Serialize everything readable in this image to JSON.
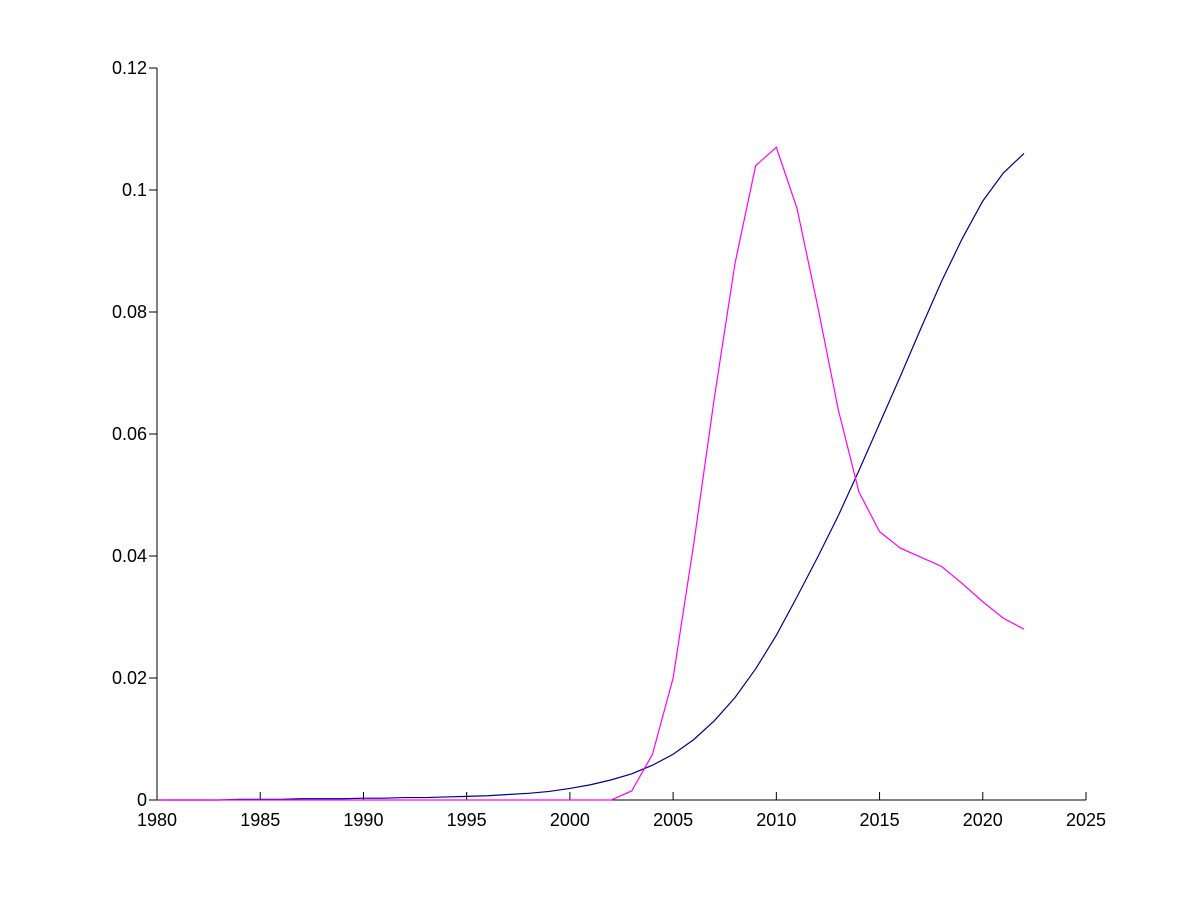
{
  "chart_data": {
    "type": "line",
    "x": [
      1980,
      1981,
      1982,
      1983,
      1984,
      1985,
      1986,
      1987,
      1988,
      1989,
      1990,
      1991,
      1992,
      1993,
      1994,
      1995,
      1996,
      1997,
      1998,
      1999,
      2000,
      2001,
      2002,
      2003,
      2004,
      2005,
      2006,
      2007,
      2008,
      2009,
      2010,
      2011,
      2012,
      2013,
      2014,
      2015,
      2016,
      2017,
      2018,
      2019,
      2020,
      2021,
      2022
    ],
    "series": [
      {
        "color": "#00008b",
        "values": [
          0,
          0,
          0,
          0,
          0.0001,
          0.0001,
          0.0001,
          0.0002,
          0.0002,
          0.0002,
          0.0003,
          0.0003,
          0.0004,
          0.0004,
          0.0005,
          0.0006,
          0.0007,
          0.0009,
          0.0011,
          0.0014,
          0.0019,
          0.0025,
          0.0033,
          0.0043,
          0.0057,
          0.0075,
          0.0099,
          0.013,
          0.0168,
          0.0215,
          0.027,
          0.0333,
          0.0398,
          0.0466,
          0.054,
          0.0617,
          0.0694,
          0.0773,
          0.085,
          0.092,
          0.0982,
          0.1028,
          0.106
        ]
      },
      {
        "color": "#ff00ff",
        "values": [
          0,
          0,
          0,
          0,
          0,
          0,
          0,
          0,
          0,
          0,
          0,
          0,
          0,
          0,
          0,
          0,
          0,
          0,
          0,
          0,
          0,
          0,
          0,
          0.0015,
          0.0075,
          0.02,
          0.042,
          0.066,
          0.088,
          0.104,
          0.107,
          0.097,
          0.081,
          0.064,
          0.0505,
          0.044,
          0.0413,
          0.0398,
          0.0383,
          0.0355,
          0.0325,
          0.0298,
          0.028
        ]
      }
    ],
    "xlim": [
      1980,
      2025
    ],
    "xticks": [
      1980,
      1985,
      1990,
      1995,
      2000,
      2005,
      2010,
      2015,
      2020,
      2025
    ],
    "ylim": [
      0,
      0.12
    ],
    "yticks": [
      0,
      0.02,
      0.04,
      0.06,
      0.08,
      0.1,
      0.12
    ],
    "grid": false
  }
}
